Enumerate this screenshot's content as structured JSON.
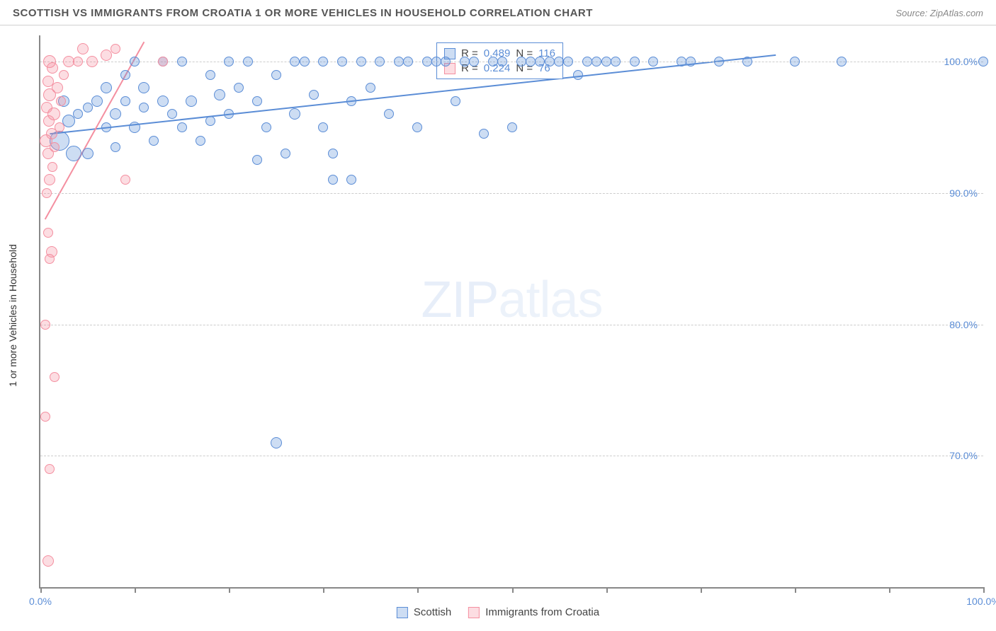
{
  "title": "SCOTTISH VS IMMIGRANTS FROM CROATIA 1 OR MORE VEHICLES IN HOUSEHOLD CORRELATION CHART",
  "source": "Source: ZipAtlas.com",
  "watermark_bold": "ZIP",
  "watermark_thin": "atlas",
  "ylabel": "1 or more Vehicles in Household",
  "chart": {
    "type": "scatter",
    "xlim": [
      0,
      100
    ],
    "ylim": [
      60,
      102
    ],
    "ytick_labels": [
      "70.0%",
      "80.0%",
      "90.0%",
      "100.0%"
    ],
    "ytick_values": [
      70,
      80,
      90,
      100
    ],
    "xtick_values": [
      0,
      10,
      20,
      30,
      40,
      50,
      60,
      70,
      80,
      90,
      100
    ],
    "xtick_labels_shown": {
      "0": "0.0%",
      "100": "100.0%"
    },
    "grid_color": "#cccccc",
    "axis_color": "#888888",
    "background_color": "#ffffff",
    "series": [
      {
        "name": "Scottish",
        "fill": "rgba(91,141,214,0.30)",
        "stroke": "#5b8dd6",
        "trend": {
          "x1": 1,
          "y1": 94.5,
          "x2": 78,
          "y2": 100.5,
          "width": 2
        },
        "points": [
          {
            "x": 2,
            "y": 94,
            "r": 14
          },
          {
            "x": 2.5,
            "y": 97,
            "r": 8
          },
          {
            "x": 3,
            "y": 95.5,
            "r": 9
          },
          {
            "x": 3.5,
            "y": 93,
            "r": 11
          },
          {
            "x": 4,
            "y": 96,
            "r": 7
          },
          {
            "x": 5,
            "y": 93,
            "r": 8
          },
          {
            "x": 5,
            "y": 96.5,
            "r": 7
          },
          {
            "x": 6,
            "y": 97,
            "r": 8
          },
          {
            "x": 7,
            "y": 95,
            "r": 7
          },
          {
            "x": 7,
            "y": 98,
            "r": 8
          },
          {
            "x": 8,
            "y": 93.5,
            "r": 7
          },
          {
            "x": 8,
            "y": 96,
            "r": 8
          },
          {
            "x": 9,
            "y": 97,
            "r": 7
          },
          {
            "x": 9,
            "y": 99,
            "r": 7
          },
          {
            "x": 10,
            "y": 95,
            "r": 8
          },
          {
            "x": 10,
            "y": 100,
            "r": 7
          },
          {
            "x": 11,
            "y": 96.5,
            "r": 7
          },
          {
            "x": 11,
            "y": 98,
            "r": 8
          },
          {
            "x": 12,
            "y": 94,
            "r": 7
          },
          {
            "x": 13,
            "y": 100,
            "r": 7
          },
          {
            "x": 13,
            "y": 97,
            "r": 8
          },
          {
            "x": 14,
            "y": 96,
            "r": 7
          },
          {
            "x": 15,
            "y": 95,
            "r": 7
          },
          {
            "x": 15,
            "y": 100,
            "r": 7
          },
          {
            "x": 16,
            "y": 97,
            "r": 8
          },
          {
            "x": 17,
            "y": 94,
            "r": 7
          },
          {
            "x": 18,
            "y": 99,
            "r": 7
          },
          {
            "x": 18,
            "y": 95.5,
            "r": 7
          },
          {
            "x": 19,
            "y": 97.5,
            "r": 8
          },
          {
            "x": 20,
            "y": 100,
            "r": 7
          },
          {
            "x": 20,
            "y": 96,
            "r": 7
          },
          {
            "x": 21,
            "y": 98,
            "r": 7
          },
          {
            "x": 22,
            "y": 100,
            "r": 7
          },
          {
            "x": 23,
            "y": 97,
            "r": 7
          },
          {
            "x": 23,
            "y": 92.5,
            "r": 7
          },
          {
            "x": 24,
            "y": 95,
            "r": 7
          },
          {
            "x": 25,
            "y": 71,
            "r": 8
          },
          {
            "x": 25,
            "y": 99,
            "r": 7
          },
          {
            "x": 26,
            "y": 93,
            "r": 7
          },
          {
            "x": 27,
            "y": 100,
            "r": 7
          },
          {
            "x": 27,
            "y": 96,
            "r": 8
          },
          {
            "x": 28,
            "y": 100,
            "r": 7
          },
          {
            "x": 29,
            "y": 97.5,
            "r": 7
          },
          {
            "x": 30,
            "y": 95,
            "r": 7
          },
          {
            "x": 30,
            "y": 100,
            "r": 7
          },
          {
            "x": 31,
            "y": 93,
            "r": 7
          },
          {
            "x": 31,
            "y": 91,
            "r": 7
          },
          {
            "x": 32,
            "y": 100,
            "r": 7
          },
          {
            "x": 33,
            "y": 97,
            "r": 7
          },
          {
            "x": 33,
            "y": 91,
            "r": 7
          },
          {
            "x": 34,
            "y": 100,
            "r": 7
          },
          {
            "x": 35,
            "y": 98,
            "r": 7
          },
          {
            "x": 36,
            "y": 100,
            "r": 7
          },
          {
            "x": 37,
            "y": 96,
            "r": 7
          },
          {
            "x": 38,
            "y": 100,
            "r": 7
          },
          {
            "x": 39,
            "y": 100,
            "r": 7
          },
          {
            "x": 40,
            "y": 95,
            "r": 7
          },
          {
            "x": 41,
            "y": 100,
            "r": 7
          },
          {
            "x": 42,
            "y": 100,
            "r": 7
          },
          {
            "x": 43,
            "y": 100,
            "r": 7
          },
          {
            "x": 44,
            "y": 97,
            "r": 7
          },
          {
            "x": 45,
            "y": 100,
            "r": 7
          },
          {
            "x": 46,
            "y": 100,
            "r": 7
          },
          {
            "x": 47,
            "y": 94.5,
            "r": 7
          },
          {
            "x": 48,
            "y": 100,
            "r": 7
          },
          {
            "x": 49,
            "y": 100,
            "r": 7
          },
          {
            "x": 50,
            "y": 95,
            "r": 7
          },
          {
            "x": 51,
            "y": 100,
            "r": 7
          },
          {
            "x": 52,
            "y": 100,
            "r": 7
          },
          {
            "x": 53,
            "y": 100,
            "r": 7
          },
          {
            "x": 54,
            "y": 100,
            "r": 7
          },
          {
            "x": 55,
            "y": 100,
            "r": 7
          },
          {
            "x": 56,
            "y": 100,
            "r": 7
          },
          {
            "x": 57,
            "y": 99,
            "r": 7
          },
          {
            "x": 58,
            "y": 100,
            "r": 7
          },
          {
            "x": 59,
            "y": 100,
            "r": 7
          },
          {
            "x": 60,
            "y": 100,
            "r": 7
          },
          {
            "x": 61,
            "y": 100,
            "r": 7
          },
          {
            "x": 63,
            "y": 100,
            "r": 7
          },
          {
            "x": 65,
            "y": 100,
            "r": 7
          },
          {
            "x": 68,
            "y": 100,
            "r": 7
          },
          {
            "x": 69,
            "y": 100,
            "r": 7
          },
          {
            "x": 72,
            "y": 100,
            "r": 7
          },
          {
            "x": 75,
            "y": 100,
            "r": 7
          },
          {
            "x": 80,
            "y": 100,
            "r": 7
          },
          {
            "x": 85,
            "y": 100,
            "r": 7
          },
          {
            "x": 100,
            "y": 100,
            "r": 7
          }
        ]
      },
      {
        "name": "Immigrants from Croatia",
        "fill": "rgba(244,143,160,0.30)",
        "stroke": "#f48fa0",
        "trend": {
          "x1": 0.5,
          "y1": 88,
          "x2": 11,
          "y2": 101.5,
          "width": 2
        },
        "points": [
          {
            "x": 0.8,
            "y": 62,
            "r": 8
          },
          {
            "x": 1,
            "y": 69,
            "r": 7
          },
          {
            "x": 0.5,
            "y": 73,
            "r": 7
          },
          {
            "x": 1.5,
            "y": 76,
            "r": 7
          },
          {
            "x": 0.5,
            "y": 80,
            "r": 7
          },
          {
            "x": 1,
            "y": 85,
            "r": 7
          },
          {
            "x": 1.2,
            "y": 85.5,
            "r": 8
          },
          {
            "x": 0.8,
            "y": 87,
            "r": 7
          },
          {
            "x": 9,
            "y": 91,
            "r": 7
          },
          {
            "x": 0.7,
            "y": 90,
            "r": 7
          },
          {
            "x": 1,
            "y": 91,
            "r": 8
          },
          {
            "x": 1.3,
            "y": 92,
            "r": 7
          },
          {
            "x": 0.8,
            "y": 93,
            "r": 8
          },
          {
            "x": 1.5,
            "y": 93.5,
            "r": 7
          },
          {
            "x": 0.6,
            "y": 94,
            "r": 9
          },
          {
            "x": 1.2,
            "y": 94.5,
            "r": 8
          },
          {
            "x": 2,
            "y": 95,
            "r": 7
          },
          {
            "x": 0.9,
            "y": 95.5,
            "r": 8
          },
          {
            "x": 1.4,
            "y": 96,
            "r": 9
          },
          {
            "x": 0.7,
            "y": 96.5,
            "r": 8
          },
          {
            "x": 2.2,
            "y": 97,
            "r": 7
          },
          {
            "x": 1,
            "y": 97.5,
            "r": 9
          },
          {
            "x": 1.8,
            "y": 98,
            "r": 8
          },
          {
            "x": 0.8,
            "y": 98.5,
            "r": 8
          },
          {
            "x": 2.5,
            "y": 99,
            "r": 7
          },
          {
            "x": 1.3,
            "y": 99.5,
            "r": 8
          },
          {
            "x": 3,
            "y": 100,
            "r": 8
          },
          {
            "x": 1,
            "y": 100,
            "r": 9
          },
          {
            "x": 4,
            "y": 100,
            "r": 7
          },
          {
            "x": 5.5,
            "y": 100,
            "r": 8
          },
          {
            "x": 7,
            "y": 100.5,
            "r": 8
          },
          {
            "x": 8,
            "y": 101,
            "r": 7
          },
          {
            "x": 13,
            "y": 100,
            "r": 7
          },
          {
            "x": 4.5,
            "y": 101,
            "r": 8
          }
        ]
      }
    ]
  },
  "stats": [
    {
      "swatch_fill": "rgba(91,141,214,0.30)",
      "swatch_stroke": "#5b8dd6",
      "r_label": "R =",
      "r": "0.489",
      "n_label": "N =",
      "n": "116"
    },
    {
      "swatch_fill": "rgba(244,143,160,0.30)",
      "swatch_stroke": "#f48fa0",
      "r_label": "R =",
      "r": "0.224",
      "n_label": "N =",
      "n": " 76"
    }
  ],
  "legend": [
    {
      "swatch_fill": "rgba(91,141,214,0.30)",
      "swatch_stroke": "#5b8dd6",
      "label": "Scottish"
    },
    {
      "swatch_fill": "rgba(244,143,160,0.30)",
      "swatch_stroke": "#f48fa0",
      "label": "Immigrants from Croatia"
    }
  ]
}
